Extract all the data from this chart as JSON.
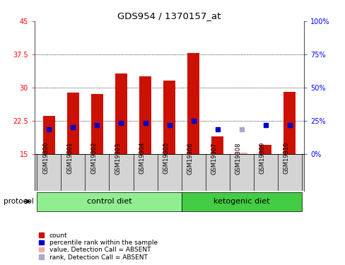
{
  "title": "GDS954 / 1370157_at",
  "samples": [
    "GSM19300",
    "GSM19301",
    "GSM19302",
    "GSM19303",
    "GSM19304",
    "GSM19305",
    "GSM19306",
    "GSM19307",
    "GSM19308",
    "GSM19309",
    "GSM19310"
  ],
  "count_values": [
    23.5,
    28.8,
    28.5,
    33.2,
    32.5,
    31.5,
    37.8,
    19.0,
    15.2,
    17.0,
    29.0
  ],
  "count_absent": [
    false,
    false,
    false,
    false,
    false,
    false,
    false,
    false,
    true,
    false,
    false
  ],
  "percentile_values": [
    20.5,
    21.0,
    21.5,
    22.0,
    22.0,
    21.5,
    22.5,
    20.5,
    20.5,
    21.5,
    21.5
  ],
  "percentile_absent": [
    false,
    false,
    false,
    false,
    false,
    false,
    false,
    false,
    true,
    false,
    false
  ],
  "ylim": [
    15,
    45
  ],
  "yticks": [
    15,
    22.5,
    30,
    37.5,
    45
  ],
  "right_yticks": [
    0,
    25,
    50,
    75,
    100
  ],
  "ybaseline": 15,
  "groups": [
    {
      "label": "control diet",
      "indices": [
        0,
        1,
        2,
        3,
        4,
        5
      ],
      "color": "#90ee90"
    },
    {
      "label": "ketogenic diet",
      "indices": [
        6,
        7,
        8,
        9,
        10
      ],
      "color": "#44cc44"
    }
  ],
  "bar_color": "#cc1100",
  "bar_absent_color": "#ffaaaa",
  "percentile_color": "#0000cc",
  "percentile_absent_color": "#aaaacc",
  "bar_width": 0.5,
  "plot_bg": "#ffffff",
  "legend_items": [
    {
      "label": "count",
      "color": "#cc1100"
    },
    {
      "label": "percentile rank within the sample",
      "color": "#0000cc"
    },
    {
      "label": "value, Detection Call = ABSENT",
      "color": "#ffaaaa"
    },
    {
      "label": "rank, Detection Call = ABSENT",
      "color": "#aaaacc"
    }
  ]
}
